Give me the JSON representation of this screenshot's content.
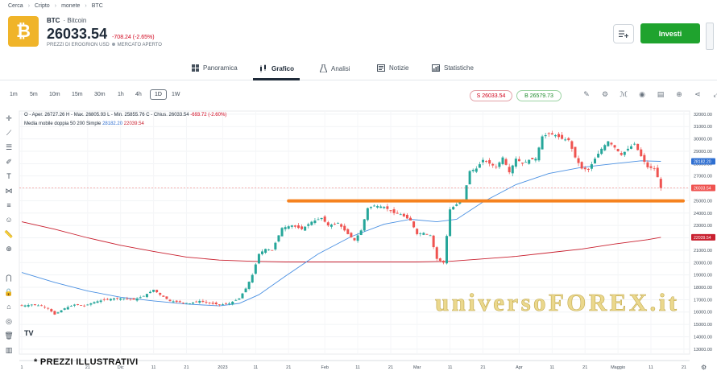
{
  "breadcrumb": [
    "Cerca",
    "Cripto",
    "monete",
    "BTC"
  ],
  "asset": {
    "logo_glyph": "₿",
    "symbol": "BTC",
    "name": "Bitcoin",
    "price": "26033.54",
    "change": "-708.24 (-2.65%)",
    "currency_note": "PREZZI DI EROGRION USD",
    "market_status": "MERCATO APERTO",
    "logo_color": "#f0b429"
  },
  "actions": {
    "invest_label": "Investi",
    "watchlist_icon": "list-add-icon"
  },
  "tabs": [
    {
      "label": "Panoramica",
      "icon": "grid-icon"
    },
    {
      "label": "Grafico",
      "icon": "candles-icon"
    },
    {
      "label": "Analisi",
      "icon": "flask-icon"
    },
    {
      "label": "Notizie",
      "icon": "news-icon"
    },
    {
      "label": "Statistiche",
      "icon": "bar-stats-icon"
    }
  ],
  "timeframes": [
    "1m",
    "5m",
    "10m",
    "15m",
    "30m",
    "1h",
    "4h",
    "1D",
    "1W"
  ],
  "active_timeframe": "1D",
  "quote": {
    "sell": "S 26033.54",
    "buy": "B 26579.73"
  },
  "chart_header": {
    "ohlc": "O - Aper. 26727.26  H - Max. 26805.93  L - Min. 25855.76  C - Chius. 26033.54",
    "ohlc_change": "-693.72 (-2.60%)",
    "ma_label": "Media mobile doppia 50 200 Simple",
    "ma_50": "28182.20",
    "ma_200": "22039.54"
  },
  "chart_data": {
    "type": "line",
    "y_axis": [
      "32000.00",
      "31000.00",
      "30000.00",
      "29000.00",
      "28000.00",
      "27000.00",
      "26000.00",
      "25000.00",
      "24000.00",
      "23000.00",
      "22000.00",
      "21000.00",
      "20000.00",
      "19000.00",
      "18000.00",
      "17000.00",
      "16000.00",
      "15000.00",
      "14000.00",
      "13000.00"
    ],
    "ylim": [
      12600,
      32250
    ],
    "x_ticks": [
      {
        "label": "1",
        "day": 0
      },
      {
        "label": "21",
        "day": 20
      },
      {
        "label": "Dic",
        "day": 30
      },
      {
        "label": "11",
        "day": 40
      },
      {
        "label": "21",
        "day": 50
      },
      {
        "label": "2023",
        "day": 61
      },
      {
        "label": "11",
        "day": 71
      },
      {
        "label": "21",
        "day": 81
      },
      {
        "label": "Feb",
        "day": 92
      },
      {
        "label": "11",
        "day": 102
      },
      {
        "label": "21",
        "day": 112
      },
      {
        "label": "Mar",
        "day": 120
      },
      {
        "label": "11",
        "day": 130
      },
      {
        "label": "21",
        "day": 140
      },
      {
        "label": "Apr",
        "day": 151
      },
      {
        "label": "11",
        "day": 161
      },
      {
        "label": "21",
        "day": 171
      },
      {
        "label": "Maggio",
        "day": 181
      },
      {
        "label": "11",
        "day": 191
      },
      {
        "label": "21",
        "day": 201
      }
    ],
    "price_closes": [
      [
        0,
        16500
      ],
      [
        3,
        16600
      ],
      [
        6,
        16500
      ],
      [
        8,
        16300
      ],
      [
        10,
        15800
      ],
      [
        13,
        16300
      ],
      [
        16,
        16600
      ],
      [
        19,
        16500
      ],
      [
        22,
        16800
      ],
      [
        25,
        17000
      ],
      [
        28,
        17100
      ],
      [
        31,
        17100
      ],
      [
        34,
        17000
      ],
      [
        37,
        17300
      ],
      [
        40,
        17800
      ],
      [
        42,
        17400
      ],
      [
        45,
        16900
      ],
      [
        48,
        16800
      ],
      [
        51,
        16700
      ],
      [
        54,
        16900
      ],
      [
        57,
        16700
      ],
      [
        60,
        16600
      ],
      [
        63,
        16700
      ],
      [
        66,
        17100
      ],
      [
        68,
        17900
      ],
      [
        70,
        19000
      ],
      [
        72,
        20700
      ],
      [
        74,
        21100
      ],
      [
        76,
        21000
      ],
      [
        79,
        22800
      ],
      [
        82,
        23000
      ],
      [
        85,
        22700
      ],
      [
        88,
        23300
      ],
      [
        91,
        23600
      ],
      [
        93,
        23000
      ],
      [
        96,
        23200
      ],
      [
        99,
        22300
      ],
      [
        101,
        21800
      ],
      [
        103,
        22600
      ],
      [
        105,
        24400
      ],
      [
        107,
        24600
      ],
      [
        110,
        24500
      ],
      [
        113,
        24000
      ],
      [
        115,
        23900
      ],
      [
        118,
        23400
      ],
      [
        120,
        22300
      ],
      [
        122,
        22400
      ],
      [
        124,
        22200
      ],
      [
        126,
        20300
      ],
      [
        128,
        20000
      ],
      [
        130,
        24300
      ],
      [
        132,
        24700
      ],
      [
        134,
        25100
      ],
      [
        136,
        27400
      ],
      [
        138,
        27600
      ],
      [
        140,
        28300
      ],
      [
        142,
        28000
      ],
      [
        144,
        27700
      ],
      [
        146,
        28500
      ],
      [
        148,
        27300
      ],
      [
        150,
        28400
      ],
      [
        152,
        28000
      ],
      [
        154,
        28300
      ],
      [
        156,
        28400
      ],
      [
        158,
        30200
      ],
      [
        160,
        30400
      ],
      [
        162,
        30300
      ],
      [
        164,
        30000
      ],
      [
        166,
        29900
      ],
      [
        168,
        28500
      ],
      [
        170,
        27600
      ],
      [
        172,
        27500
      ],
      [
        174,
        28400
      ],
      [
        176,
        29200
      ],
      [
        178,
        29800
      ],
      [
        180,
        29300
      ],
      [
        182,
        28700
      ],
      [
        184,
        29200
      ],
      [
        186,
        29600
      ],
      [
        188,
        28600
      ],
      [
        190,
        27700
      ],
      [
        192,
        27600
      ],
      [
        193,
        26900
      ],
      [
        194,
        26033
      ]
    ],
    "ma50": [
      [
        0,
        19200
      ],
      [
        10,
        18400
      ],
      [
        20,
        17700
      ],
      [
        30,
        17200
      ],
      [
        40,
        16900
      ],
      [
        50,
        16650
      ],
      [
        60,
        16500
      ],
      [
        66,
        16700
      ],
      [
        72,
        17400
      ],
      [
        80,
        18900
      ],
      [
        90,
        20700
      ],
      [
        100,
        22100
      ],
      [
        110,
        23100
      ],
      [
        118,
        23500
      ],
      [
        126,
        23300
      ],
      [
        132,
        23500
      ],
      [
        140,
        24900
      ],
      [
        150,
        26300
      ],
      [
        160,
        27200
      ],
      [
        170,
        27700
      ],
      [
        180,
        28000
      ],
      [
        188,
        28230
      ],
      [
        194,
        28182
      ]
    ],
    "ma200": [
      [
        0,
        23300
      ],
      [
        10,
        22700
      ],
      [
        20,
        22000
      ],
      [
        30,
        21400
      ],
      [
        40,
        20900
      ],
      [
        50,
        20450
      ],
      [
        60,
        20200
      ],
      [
        70,
        20100
      ],
      [
        80,
        20050
      ],
      [
        90,
        20050
      ],
      [
        100,
        20050
      ],
      [
        110,
        20050
      ],
      [
        120,
        20050
      ],
      [
        130,
        20100
      ],
      [
        140,
        20300
      ],
      [
        150,
        20500
      ],
      [
        160,
        20800
      ],
      [
        170,
        21100
      ],
      [
        180,
        21500
      ],
      [
        190,
        21850
      ],
      [
        194,
        22040
      ]
    ],
    "support_level": 24990,
    "last_price": 26033.54,
    "ma50_last": 28182.2,
    "ma200_last": 22039.54,
    "colors": {
      "up": "#26a69a",
      "down": "#ef5350",
      "ma50": "#4a90e2",
      "ma200": "#c9202f",
      "support": "#f5821f",
      "last_price": "#ef5350"
    }
  },
  "watermark": "universoFOREX.it",
  "disclaimer": "* PREZZI ILLUSTRATIVI"
}
